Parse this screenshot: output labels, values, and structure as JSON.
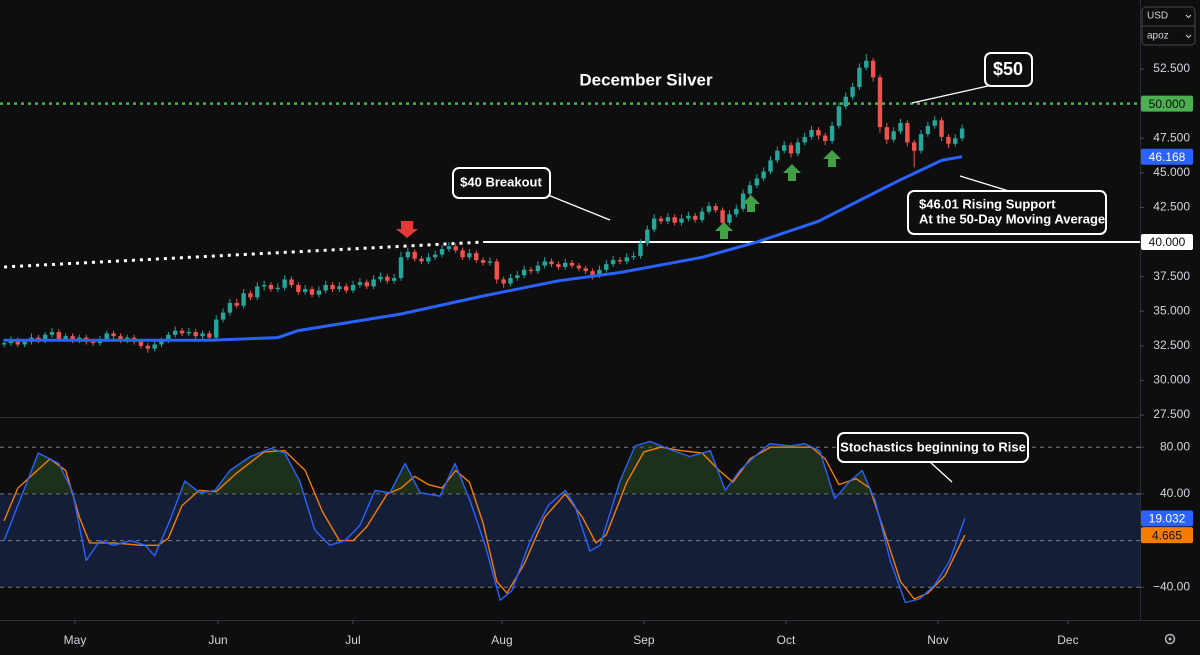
{
  "ui": {
    "currency": "USD",
    "unit": "apoz"
  },
  "chart_data": [
    {
      "type": "candlestick",
      "title": "December Silver",
      "up_color": "#26a69a",
      "down_color": "#ef5350",
      "annotations": [
        "$50",
        "$40 Breakout",
        [
          "$46.01 Rising Support",
          "At the 50-Day Moving Average"
        ]
      ],
      "xlim": [
        -0.6,
        166
      ],
      "ylim": [
        27.36,
        57.49
      ],
      "xticks": [
        {
          "value": 10.36,
          "label": "May"
        },
        {
          "value": 31.26,
          "label": "Jun"
        },
        {
          "value": 50.98,
          "label": "Jul"
        },
        {
          "value": 72.76,
          "label": "Aug"
        },
        {
          "value": 93.5,
          "label": "Sep"
        },
        {
          "value": 114.26,
          "label": "Oct"
        },
        {
          "value": 136.47,
          "label": "Nov"
        },
        {
          "value": 155.47,
          "label": "Dec"
        }
      ],
      "yticks": [
        {
          "value": 27.5,
          "label": "27.500"
        },
        {
          "value": 30,
          "label": "30.000"
        },
        {
          "value": 32.5,
          "label": "32.500"
        },
        {
          "value": 35,
          "label": "35.000"
        },
        {
          "value": 37.5,
          "label": "37.500"
        },
        {
          "value": 40,
          "label": "40.000"
        },
        {
          "value": 42.5,
          "label": "42.500"
        },
        {
          "value": 45,
          "label": "45.000"
        },
        {
          "value": 47.5,
          "label": "47.500"
        },
        {
          "value": 50,
          "label": "50.000"
        },
        {
          "value": 52.5,
          "label": "52.500"
        }
      ],
      "candles": [
        [
          32.6,
          33.0,
          32.4,
          32.7
        ],
        [
          32.7,
          33.2,
          32.5,
          32.9
        ],
        [
          32.9,
          33.1,
          32.4,
          32.6
        ],
        [
          32.6,
          33.0,
          32.4,
          32.8
        ],
        [
          32.8,
          33.4,
          32.6,
          33.1
        ],
        [
          33.1,
          33.3,
          32.7,
          32.9
        ],
        [
          32.9,
          33.5,
          32.7,
          33.3
        ],
        [
          33.3,
          33.8,
          33.1,
          33.5
        ],
        [
          33.5,
          33.7,
          32.8,
          33.0
        ],
        [
          33.0,
          33.4,
          32.8,
          33.2
        ],
        [
          33.2,
          33.4,
          32.7,
          32.9
        ],
        [
          32.9,
          33.3,
          32.7,
          33.1
        ],
        [
          33.1,
          33.3,
          32.6,
          32.8
        ],
        [
          32.8,
          33.0,
          32.5,
          32.7
        ],
        [
          32.7,
          33.2,
          32.5,
          33.0
        ],
        [
          33.0,
          33.6,
          32.8,
          33.4
        ],
        [
          33.4,
          33.6,
          33.0,
          33.2
        ],
        [
          33.2,
          33.4,
          32.7,
          32.9
        ],
        [
          32.9,
          33.3,
          32.7,
          33.1
        ],
        [
          33.1,
          33.3,
          32.6,
          32.8
        ],
        [
          32.8,
          33.0,
          32.3,
          32.5
        ],
        [
          32.5,
          32.7,
          32.0,
          32.3
        ],
        [
          32.3,
          32.8,
          32.1,
          32.6
        ],
        [
          32.6,
          33.1,
          32.4,
          32.9
        ],
        [
          32.9,
          33.5,
          32.7,
          33.3
        ],
        [
          33.3,
          33.9,
          33.1,
          33.6
        ],
        [
          33.6,
          33.8,
          33.2,
          33.4
        ],
        [
          33.4,
          33.8,
          33.2,
          33.5
        ],
        [
          33.5,
          33.7,
          33.0,
          33.2
        ],
        [
          33.2,
          33.6,
          33.0,
          33.4
        ],
        [
          33.4,
          33.6,
          32.9,
          33.1
        ],
        [
          33.1,
          34.7,
          33.0,
          34.4
        ],
        [
          34.4,
          35.2,
          34.2,
          34.9
        ],
        [
          34.9,
          35.9,
          34.7,
          35.6
        ],
        [
          35.6,
          35.9,
          35.2,
          35.4
        ],
        [
          35.4,
          36.6,
          35.2,
          36.3
        ],
        [
          36.3,
          36.5,
          35.8,
          36.0
        ],
        [
          36.0,
          37.1,
          35.8,
          36.8
        ],
        [
          36.8,
          37.2,
          36.5,
          36.9
        ],
        [
          36.9,
          37.1,
          36.4,
          36.6
        ],
        [
          36.6,
          37.0,
          36.4,
          36.7
        ],
        [
          36.7,
          37.6,
          36.5,
          37.3
        ],
        [
          37.3,
          37.5,
          36.7,
          36.9
        ],
        [
          36.9,
          37.1,
          36.2,
          36.4
        ],
        [
          36.4,
          36.9,
          36.2,
          36.6
        ],
        [
          36.6,
          36.8,
          36.0,
          36.2
        ],
        [
          36.2,
          36.8,
          36.0,
          36.5
        ],
        [
          36.5,
          37.2,
          36.3,
          36.9
        ],
        [
          36.9,
          37.1,
          36.4,
          36.6
        ],
        [
          36.6,
          37.1,
          36.4,
          36.8
        ],
        [
          36.8,
          37.0,
          36.3,
          36.5
        ],
        [
          36.5,
          37.2,
          36.3,
          36.9
        ],
        [
          36.9,
          37.4,
          36.7,
          37.1
        ],
        [
          37.1,
          37.3,
          36.6,
          36.8
        ],
        [
          36.8,
          37.6,
          36.6,
          37.3
        ],
        [
          37.3,
          37.8,
          37.1,
          37.5
        ],
        [
          37.5,
          37.7,
          37.0,
          37.2
        ],
        [
          37.2,
          37.7,
          37.0,
          37.4
        ],
        [
          37.4,
          39.3,
          37.2,
          38.9
        ],
        [
          38.9,
          39.6,
          38.7,
          39.3
        ],
        [
          39.3,
          39.5,
          38.6,
          38.8
        ],
        [
          38.8,
          39.0,
          38.4,
          38.6
        ],
        [
          38.6,
          39.2,
          38.4,
          38.9
        ],
        [
          38.9,
          39.4,
          38.7,
          39.1
        ],
        [
          39.1,
          39.8,
          38.9,
          39.5
        ],
        [
          39.5,
          40.0,
          39.3,
          39.7
        ],
        [
          39.7,
          39.9,
          39.2,
          39.4
        ],
        [
          39.4,
          39.6,
          38.7,
          38.9
        ],
        [
          38.9,
          39.5,
          38.7,
          39.2
        ],
        [
          39.2,
          39.4,
          38.5,
          38.7
        ],
        [
          38.7,
          38.9,
          38.3,
          38.5
        ],
        [
          38.5,
          38.9,
          38.3,
          38.6
        ],
        [
          38.6,
          38.8,
          37.0,
          37.3
        ],
        [
          37.3,
          37.5,
          36.7,
          37.0
        ],
        [
          37.0,
          37.7,
          36.8,
          37.4
        ],
        [
          37.4,
          37.9,
          37.2,
          37.6
        ],
        [
          37.6,
          38.3,
          37.4,
          38.0
        ],
        [
          38.0,
          38.2,
          37.7,
          37.9
        ],
        [
          37.9,
          38.6,
          37.7,
          38.3
        ],
        [
          38.3,
          38.9,
          38.1,
          38.6
        ],
        [
          38.6,
          38.8,
          38.2,
          38.4
        ],
        [
          38.4,
          38.6,
          38.0,
          38.2
        ],
        [
          38.2,
          38.8,
          38.0,
          38.5
        ],
        [
          38.5,
          38.7,
          38.1,
          38.3
        ],
        [
          38.3,
          38.5,
          37.9,
          38.1
        ],
        [
          38.1,
          38.3,
          37.7,
          37.9
        ],
        [
          37.9,
          38.1,
          37.3,
          37.6
        ],
        [
          37.6,
          38.3,
          37.4,
          38.0
        ],
        [
          38.0,
          38.7,
          37.8,
          38.4
        ],
        [
          38.4,
          39.0,
          38.2,
          38.7
        ],
        [
          38.7,
          38.9,
          38.4,
          38.6
        ],
        [
          38.6,
          39.2,
          38.4,
          38.9
        ],
        [
          38.9,
          39.3,
          38.7,
          39.0
        ],
        [
          39.0,
          40.2,
          38.8,
          39.9
        ],
        [
          39.9,
          41.2,
          39.7,
          40.9
        ],
        [
          40.9,
          42.0,
          40.7,
          41.7
        ],
        [
          41.7,
          41.9,
          41.3,
          41.5
        ],
        [
          41.5,
          42.1,
          41.3,
          41.8
        ],
        [
          41.8,
          42.0,
          41.2,
          41.4
        ],
        [
          41.4,
          42.0,
          41.2,
          41.7
        ],
        [
          41.7,
          42.2,
          41.5,
          41.9
        ],
        [
          41.9,
          42.1,
          41.4,
          41.6
        ],
        [
          41.6,
          42.5,
          41.4,
          42.2
        ],
        [
          42.2,
          42.9,
          42.0,
          42.6
        ],
        [
          42.6,
          42.8,
          42.1,
          42.3
        ],
        [
          42.3,
          42.5,
          41.1,
          41.4
        ],
        [
          41.4,
          42.3,
          41.2,
          42.0
        ],
        [
          42.0,
          42.7,
          41.8,
          42.4
        ],
        [
          42.4,
          43.8,
          42.2,
          43.5
        ],
        [
          43.5,
          44.4,
          43.3,
          44.1
        ],
        [
          44.1,
          44.9,
          43.9,
          44.6
        ],
        [
          44.6,
          45.4,
          44.4,
          45.1
        ],
        [
          45.1,
          46.2,
          44.9,
          45.9
        ],
        [
          45.9,
          46.9,
          45.7,
          46.6
        ],
        [
          46.6,
          47.3,
          46.4,
          47.0
        ],
        [
          47.0,
          47.2,
          46.1,
          46.4
        ],
        [
          46.4,
          47.5,
          46.2,
          47.2
        ],
        [
          47.2,
          47.9,
          47.0,
          47.6
        ],
        [
          47.6,
          48.4,
          47.4,
          48.1
        ],
        [
          48.1,
          48.3,
          47.4,
          47.7
        ],
        [
          47.7,
          47.9,
          47.0,
          47.3
        ],
        [
          47.3,
          48.7,
          47.1,
          48.4
        ],
        [
          48.4,
          50.1,
          48.2,
          49.8
        ],
        [
          49.8,
          50.8,
          49.6,
          50.5
        ],
        [
          50.5,
          51.5,
          50.3,
          51.2
        ],
        [
          51.2,
          52.9,
          51.0,
          52.6
        ],
        [
          52.6,
          53.6,
          52.4,
          53.1
        ],
        [
          53.1,
          53.3,
          51.6,
          51.9
        ],
        [
          51.9,
          52.1,
          47.9,
          48.3
        ],
        [
          48.3,
          48.6,
          47.1,
          47.4
        ],
        [
          47.4,
          48.3,
          47.2,
          48.0
        ],
        [
          48.0,
          48.9,
          47.8,
          48.6
        ],
        [
          48.6,
          48.8,
          46.9,
          47.2
        ],
        [
          47.2,
          47.4,
          45.4,
          46.6
        ],
        [
          46.6,
          48.1,
          46.4,
          47.8
        ],
        [
          47.8,
          48.7,
          47.6,
          48.4
        ],
        [
          48.4,
          49.1,
          48.2,
          48.8
        ],
        [
          48.8,
          49.0,
          47.3,
          47.6
        ],
        [
          47.6,
          47.8,
          46.8,
          47.1
        ],
        [
          47.1,
          47.8,
          46.9,
          47.5
        ],
        [
          47.5,
          48.5,
          47.3,
          48.2
        ]
      ],
      "ma": {
        "color": "#2962ff",
        "x": [
          0,
          30,
          40,
          43,
          58,
          70,
          81,
          90,
          102,
          110,
          119,
          125,
          131,
          137,
          140
        ],
        "values": [
          32.9,
          32.9,
          33.1,
          33.6,
          34.8,
          36.1,
          37.2,
          37.8,
          38.9,
          40.0,
          41.5,
          43.0,
          44.5,
          45.9,
          46.168
        ]
      },
      "trendline": {
        "color": "#ffffff",
        "x": [
          0,
          70
        ],
        "values": [
          38.2,
          40.0
        ]
      },
      "levels": [
        {
          "value": 50,
          "label": "50.000",
          "color": "#4caf50",
          "style": "dotted"
        },
        {
          "value": 40,
          "label": "40.000",
          "color": "#ffffff",
          "style": "solid",
          "start": 70
        }
      ]
    },
    {
      "type": "line",
      "annotations": [
        "Stochastics beginning to Rise"
      ],
      "xlim": [
        -0.6,
        166
      ],
      "ylim": [
        -68,
        105
      ],
      "yticks": [
        {
          "value": 80,
          "label": "80.00"
        },
        {
          "value": 40,
          "label": "40.00"
        },
        {
          "value": -40,
          "label": "−40.00"
        }
      ],
      "band": [
        -40,
        40
      ],
      "band_color": "#1b2b5a",
      "midline": 0,
      "fill_color": "#2e5a2e",
      "series": [
        {
          "color": "#2962ff",
          "x": [
            0,
            5,
            8,
            10,
            12,
            14,
            16,
            18.5,
            20.6,
            22,
            24.2,
            26.4,
            28.6,
            30.8,
            33,
            36,
            39,
            41,
            43.2,
            45.4,
            47.6,
            49.8,
            52,
            54.2,
            56.4,
            58.6,
            60.8,
            63.7,
            65.9,
            68.1,
            70.3,
            72.5,
            74.2,
            76.9,
            79.5,
            82,
            83.4,
            85.6,
            87.1,
            90,
            92.2,
            94.4,
            97.3,
            100.2,
            103.2,
            105.4,
            107.5,
            109.7,
            111.9,
            114.9,
            117,
            119.2,
            121.4,
            123.6,
            125.4,
            127.3,
            129.5,
            131.7,
            133.8,
            136,
            138.2,
            140.4
          ],
          "values": [
            0,
            75,
            66,
            42,
            -17,
            0,
            -4,
            0,
            -4,
            -13,
            17,
            51,
            41,
            43,
            60,
            72,
            79,
            75,
            51,
            9,
            -4,
            0,
            13,
            43,
            41,
            66,
            41,
            38,
            66,
            34,
            -4,
            -51,
            -43,
            0,
            30,
            43,
            30,
            -9,
            -4,
            51,
            81,
            85,
            78,
            72,
            77,
            43,
            60,
            72,
            83,
            81,
            83,
            77,
            36,
            51,
            60,
            34,
            -17,
            -53,
            -50,
            -38,
            -17,
            19.032
          ]
        },
        {
          "color": "#f57c00",
          "x": [
            0,
            2,
            6.7,
            9,
            11,
            12.5,
            16,
            20,
            22.5,
            24,
            26,
            28.5,
            31,
            34,
            38,
            41,
            44,
            46.5,
            49,
            51,
            53,
            56,
            58,
            60,
            62,
            64,
            66,
            68,
            70,
            72,
            73.5,
            76,
            79,
            82,
            84.5,
            86.5,
            88,
            91,
            93.5,
            96,
            99,
            102,
            104.5,
            106.5,
            109,
            112,
            115,
            118,
            120,
            122,
            124.5,
            126.5,
            128.5,
            131,
            133,
            135,
            137.5,
            140.4
          ],
          "values": [
            17,
            45,
            70,
            60,
            20,
            -2,
            -2,
            -4,
            -4,
            2,
            30,
            43,
            42,
            58,
            76,
            77,
            60,
            25,
            0,
            0,
            12,
            40,
            45,
            55,
            48,
            45,
            60,
            50,
            15,
            -35,
            -45,
            -20,
            20,
            40,
            20,
            -2,
            5,
            50,
            76,
            80,
            77,
            75,
            60,
            50,
            70,
            80,
            80,
            80,
            70,
            48,
            53,
            45,
            10,
            -35,
            -50,
            -45,
            -30,
            4.665
          ]
        }
      ]
    }
  ]
}
